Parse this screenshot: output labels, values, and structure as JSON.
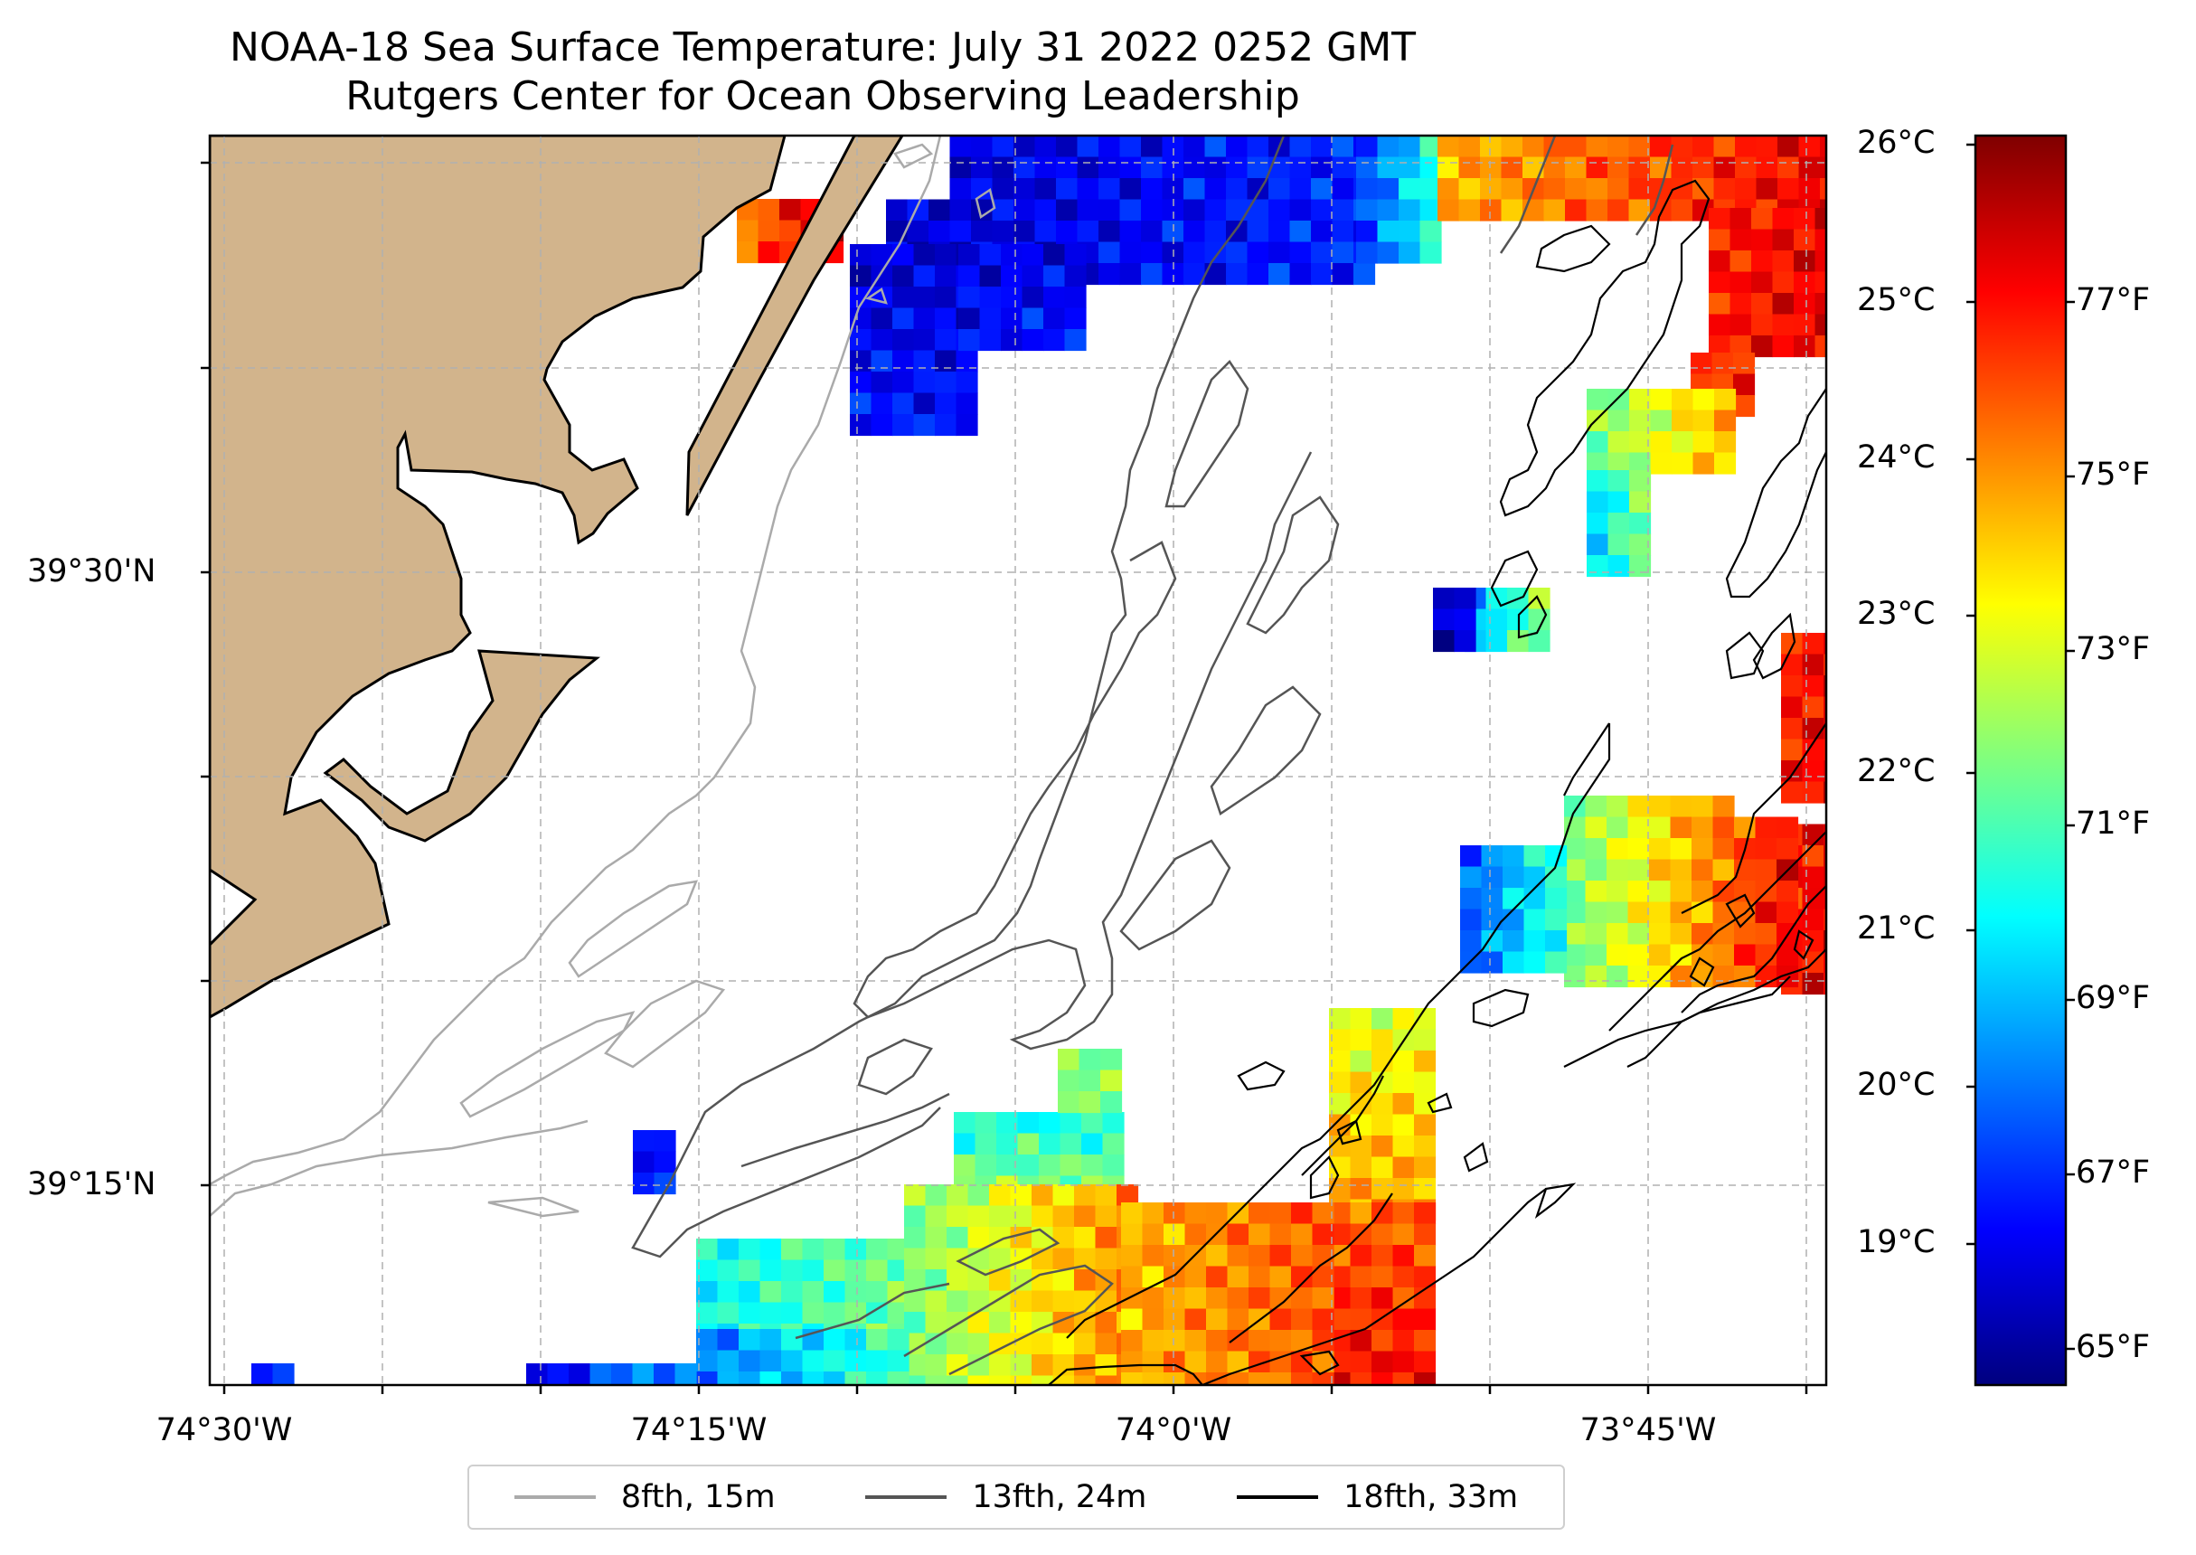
{
  "title": {
    "line1": "NOAA-18 Sea Surface Temperature: July 31 2022 0252 GMT",
    "line2": "Rutgers Center for Ocean Observing Leadership"
  },
  "axes": {
    "lat_labels": [
      "39°30'N",
      "39°15'N"
    ],
    "lon_labels": [
      "74°30'W",
      "74°15'W",
      "74°0'W",
      "73°45'W"
    ]
  },
  "colorbar": {
    "celsius_labels": [
      "26°C",
      "25°C",
      "24°C",
      "23°C",
      "22°C",
      "21°C",
      "20°C",
      "19°C"
    ],
    "fahrenheit_labels": [
      "77°F",
      "75°F",
      "73°F",
      "71°F",
      "69°F",
      "67°F",
      "65°F"
    ],
    "colors": [
      "#00007f",
      "#0000ff",
      "#007fff",
      "#00ffff",
      "#7fff7f",
      "#ffff00",
      "#ff7f00",
      "#ff0000",
      "#7f0000"
    ]
  },
  "legend": {
    "items": [
      {
        "label": "8fth, 15m",
        "color": "#aaaaaa"
      },
      {
        "label": "13fth, 24m",
        "color": "#555555"
      },
      {
        "label": "18fth, 33m",
        "color": "#000000"
      }
    ]
  },
  "colors": {
    "land": "#d2b48c",
    "frame": "#000000",
    "grid": "#b0b0b0"
  }
}
